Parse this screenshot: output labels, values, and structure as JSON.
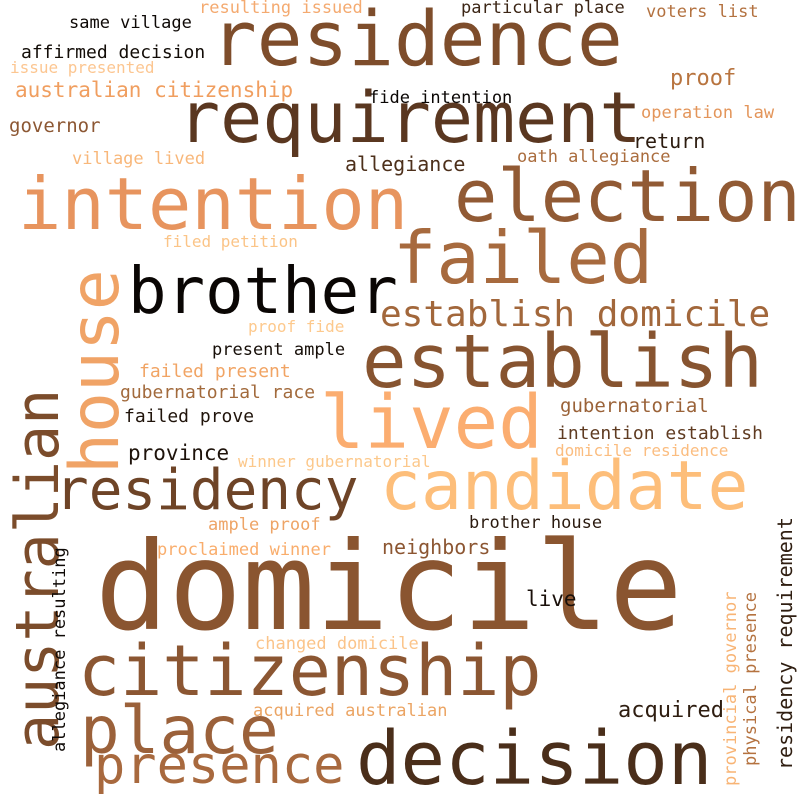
{
  "words": [
    {
      "text": "domicile",
      "color": "#8a5530"
    },
    {
      "text": "residence",
      "color": "#7e4d2b"
    },
    {
      "text": "requirement",
      "color": "#5a3720"
    },
    {
      "text": "intention",
      "color": "#e7945e"
    },
    {
      "text": "election",
      "color": "#915a34"
    },
    {
      "text": "house",
      "color": "#f0a366"
    },
    {
      "text": "brother",
      "color": "#0a0604"
    },
    {
      "text": "failed",
      "color": "#a76a3e"
    },
    {
      "text": "establish domicile",
      "color": "#a2673b"
    },
    {
      "text": "establish",
      "color": "#875430"
    },
    {
      "text": "lived",
      "color": "#fbad70"
    },
    {
      "text": "australian",
      "color": "#7b4c2b"
    },
    {
      "text": "residency",
      "color": "#6e4427"
    },
    {
      "text": "candidate",
      "color": "#fdbe7a"
    },
    {
      "text": "citizenship",
      "color": "#8b5632"
    },
    {
      "text": "place",
      "color": "#9b613a"
    },
    {
      "text": "presence",
      "color": "#a8693e"
    },
    {
      "text": "decision",
      "color": "#4a2e1a"
    },
    {
      "text": "same village",
      "color": "#0e0906"
    },
    {
      "text": "resulting issued",
      "color": "#f4aa70"
    },
    {
      "text": "particular place",
      "color": "#3b2515"
    },
    {
      "text": "voters list",
      "color": "#b3713f"
    },
    {
      "text": "affirmed decision",
      "color": "#120c07"
    },
    {
      "text": "issue presented",
      "color": "#fcc691"
    },
    {
      "text": "australian citizenship",
      "color": "#f09e5f"
    },
    {
      "text": "proof",
      "color": "#b8743f"
    },
    {
      "text": "fide intention",
      "color": "#0a0604"
    },
    {
      "text": "operation law",
      "color": "#e3955a"
    },
    {
      "text": "governor",
      "color": "#8c5733"
    },
    {
      "text": "return",
      "color": "#2c1c10"
    },
    {
      "text": "village lived",
      "color": "#f8b77a"
    },
    {
      "text": "allegiance",
      "color": "#4d301b"
    },
    {
      "text": "oath allegiance",
      "color": "#aa6c3d"
    },
    {
      "text": "filed petition",
      "color": "#fbc487"
    },
    {
      "text": "proof fide",
      "color": "#fdc98d"
    },
    {
      "text": "present ample",
      "color": "#160e08"
    },
    {
      "text": "failed present",
      "color": "#f1a464"
    },
    {
      "text": "gubernatorial race",
      "color": "#a26a3c"
    },
    {
      "text": "gubernatorial",
      "color": "#9a6238"
    },
    {
      "text": "failed prove",
      "color": "#20140b"
    },
    {
      "text": "intention establish",
      "color": "#5f3b21"
    },
    {
      "text": "province",
      "color": "#1e130b"
    },
    {
      "text": "winner gubernatorial",
      "color": "#fcc88b"
    },
    {
      "text": "domicile residence",
      "color": "#fbbd80"
    },
    {
      "text": "ample proof",
      "color": "#eea466"
    },
    {
      "text": "brother house",
      "color": "#2a1a0f"
    },
    {
      "text": "proclaimed winner",
      "color": "#f9ad6c"
    },
    {
      "text": "neighbors",
      "color": "#8c5632"
    },
    {
      "text": "live",
      "color": "#1a100a"
    },
    {
      "text": "changed domicile",
      "color": "#fbc48a"
    },
    {
      "text": "acquired australian",
      "color": "#eba463"
    },
    {
      "text": "acquired",
      "color": "#2e1d10"
    },
    {
      "text": "allegiance resulting",
      "color": "#0e0906"
    },
    {
      "text": "residency requirement",
      "color": "#2f1e11"
    },
    {
      "text": "physical presence",
      "color": "#b4723f"
    },
    {
      "text": "provincial governor",
      "color": "#f8b475"
    }
  ]
}
